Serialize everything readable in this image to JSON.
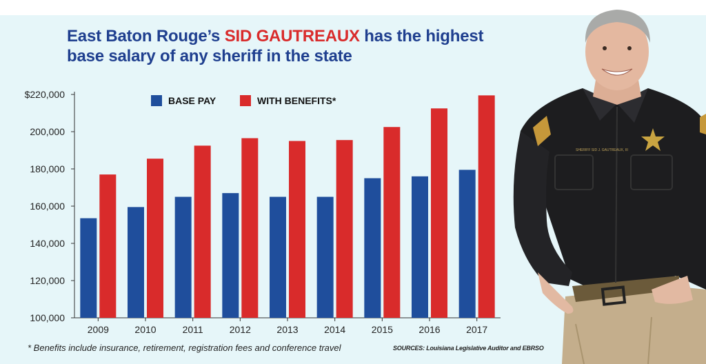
{
  "title": {
    "part1": "East Baton Rouge’s ",
    "highlight": "SID GAUTREAUX",
    "part2": " has the highest base salary of any sheriff in the state"
  },
  "chart_data": {
    "type": "bar",
    "categories": [
      "2009",
      "2010",
      "2011",
      "2012",
      "2013",
      "2014",
      "2015",
      "2016",
      "2017"
    ],
    "series": [
      {
        "name": "BASE PAY",
        "color": "#1f4e9c",
        "values": [
          153500,
          159500,
          165000,
          167000,
          165000,
          165000,
          175000,
          176000,
          179500
        ]
      },
      {
        "name": "WITH BENEFITS*",
        "color": "#d92b2b",
        "values": [
          177000,
          185500,
          192500,
          196500,
          195000,
          195500,
          202500,
          212500,
          219500
        ]
      }
    ],
    "ylim": [
      100000,
      220000
    ],
    "yticks": [
      100000,
      120000,
      140000,
      160000,
      180000,
      200000,
      220000
    ],
    "ytick_labels": [
      "100,000",
      "120,000",
      "140,000",
      "160,000",
      "180,000",
      "200,000",
      "$220,000"
    ],
    "legend_position": "top",
    "grid": false
  },
  "footnote": "* Benefits include insurance, retirement, registration fees and conference travel",
  "sources": "SOURCES: Louisiana Legislative Auditor and EBRSO",
  "colors": {
    "background": "#e6f6f9",
    "title_blue": "#1f3f8f",
    "title_red": "#d92b2b"
  },
  "photo": {
    "badge_text": "SHERIFF SID J. GAUTREAUX, III"
  }
}
